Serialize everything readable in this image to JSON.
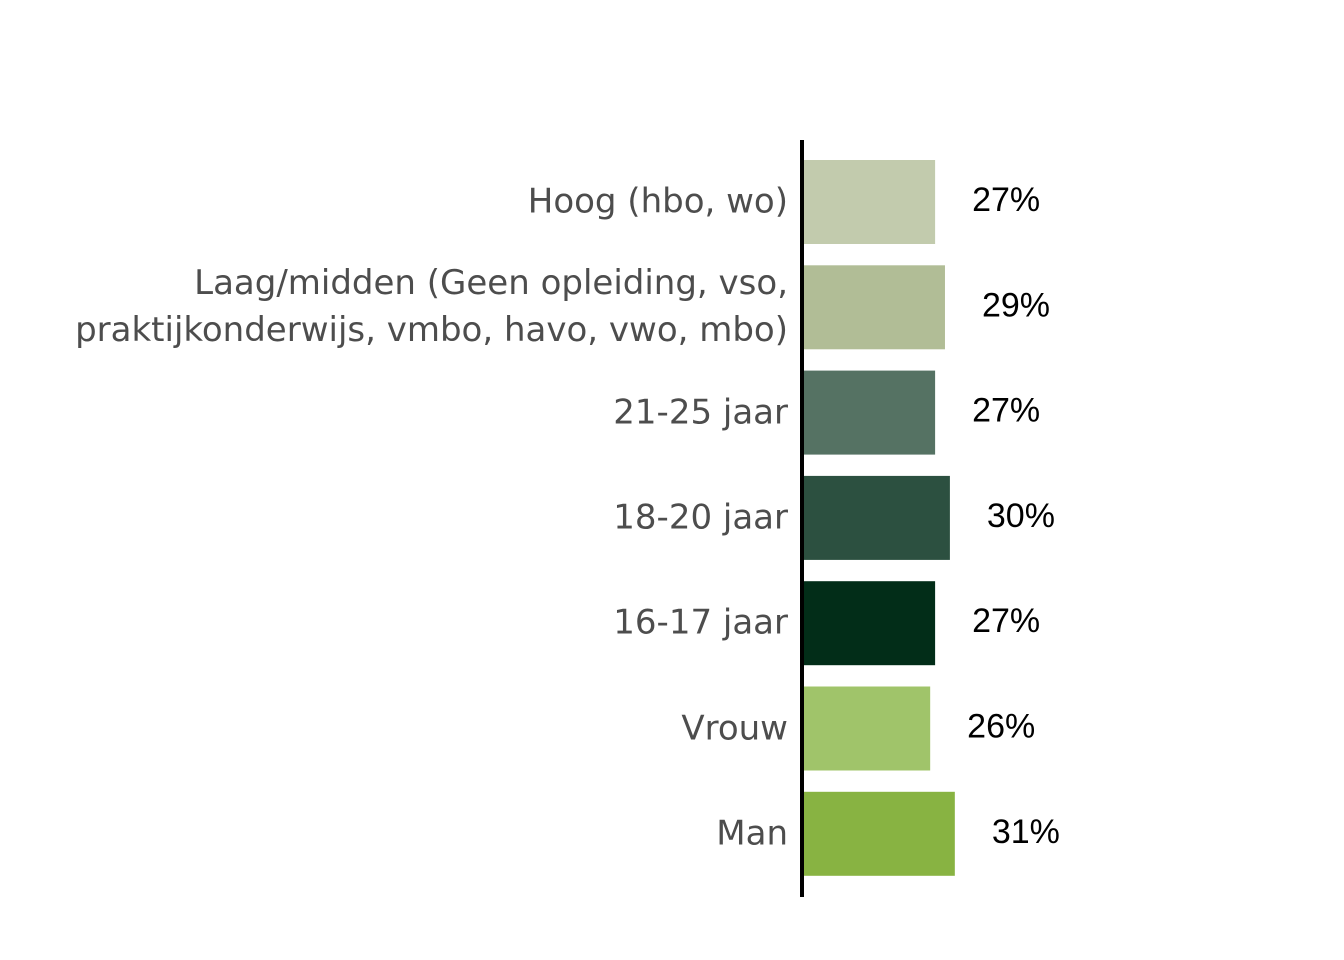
{
  "chart_data": {
    "type": "bar",
    "categories": [
      "Hoog (hbo, wo)",
      "Laag/midden (Geen opleiding, vso, praktijkonderwijs, vmbo, havo, vwo, mbo)",
      "21-25 jaar",
      "18-20 jaar",
      "16-17 jaar",
      "Vrouw",
      "Man"
    ],
    "values": [
      27,
      29,
      27,
      30,
      27,
      26,
      31
    ],
    "value_labels": [
      "27%",
      "29%",
      "27%",
      "30%",
      "27%",
      "26%",
      "31%"
    ],
    "colors": [
      "#c2cbad",
      "#b1bd96",
      "#557263",
      "#2c5040",
      "#022d18",
      "#a0c46a",
      "#88b342"
    ]
  }
}
